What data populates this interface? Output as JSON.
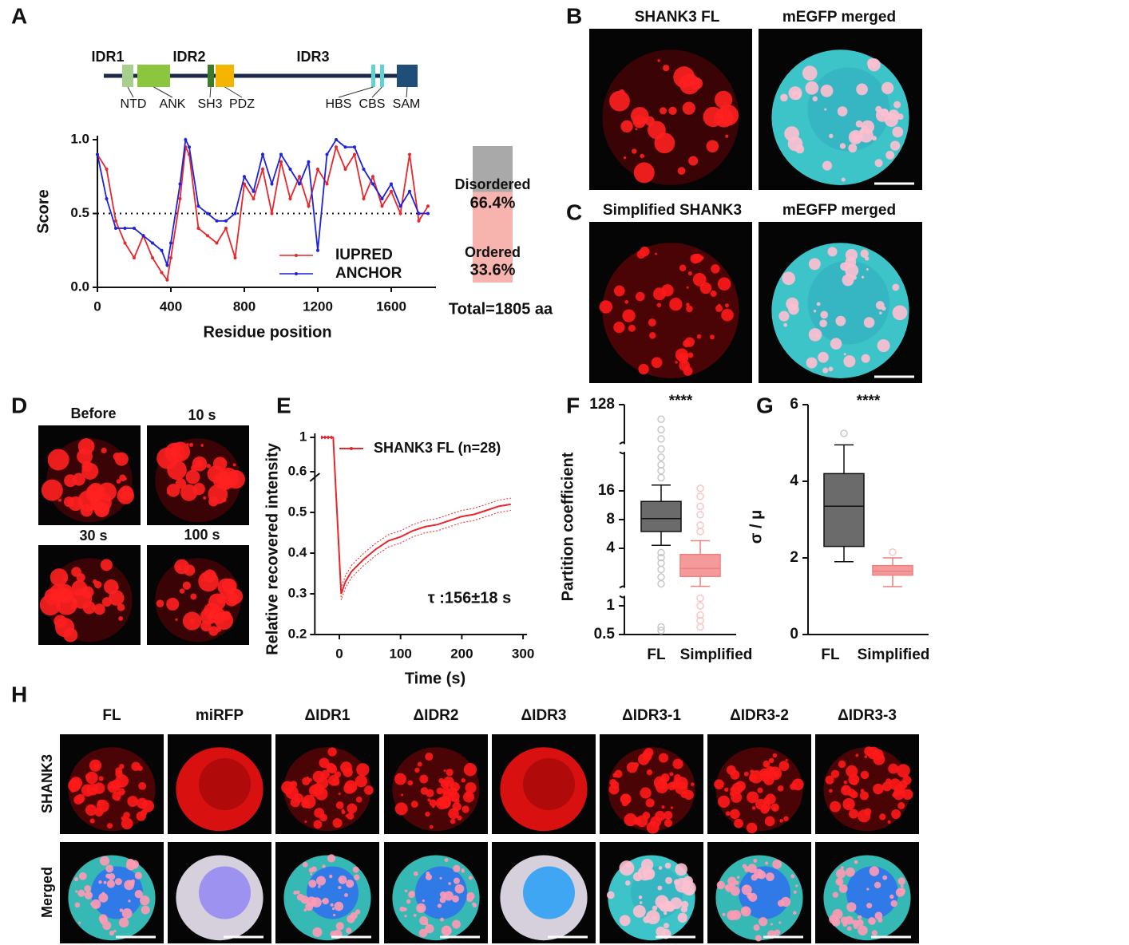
{
  "panel_labels": [
    "A",
    "B",
    "C",
    "D",
    "E",
    "F",
    "G",
    "H"
  ],
  "panel_a_diagram": {
    "idr_labels": [
      "IDR1",
      "IDR2",
      "IDR3"
    ],
    "domain_labels": [
      "NTD",
      "ANK",
      "SH3",
      "PDZ",
      "HBS",
      "CBS",
      "SAM"
    ]
  },
  "panel_b": {
    "titles": [
      "SHANK3 FL",
      "mEGFP merged"
    ]
  },
  "panel_c": {
    "titles": [
      "Simplified SHANK3",
      "mEGFP merged"
    ]
  },
  "panel_d": {
    "titles": [
      "Before",
      "10 s",
      "30 s",
      "100 s"
    ]
  },
  "panel_h": {
    "columns": [
      "FL",
      "miRFP",
      "ΔIDR1",
      "ΔIDR2",
      "ΔIDR3",
      "ΔIDR3-1",
      "ΔIDR3-2",
      "ΔIDR3-3"
    ],
    "rows": [
      "SHANK3",
      "Merged"
    ]
  },
  "chart_data": [
    {
      "type": "line",
      "ylabel": "Score",
      "xlabel": "Residue position",
      "x": [
        0,
        50,
        100,
        150,
        200,
        250,
        300,
        350,
        380,
        400,
        450,
        480,
        500,
        550,
        600,
        650,
        700,
        750,
        800,
        850,
        900,
        950,
        1000,
        1050,
        1100,
        1150,
        1200,
        1250,
        1300,
        1350,
        1400,
        1450,
        1500,
        1550,
        1600,
        1650,
        1700,
        1750,
        1800
      ],
      "series": [
        {
          "name": "IUPRED",
          "color": "#e8262b",
          "values": [
            0.9,
            0.8,
            0.45,
            0.3,
            0.2,
            0.35,
            0.2,
            0.1,
            0.05,
            0.2,
            0.6,
            0.95,
            0.9,
            0.4,
            0.35,
            0.3,
            0.4,
            0.2,
            0.7,
            0.6,
            0.8,
            0.5,
            0.85,
            0.6,
            0.75,
            0.55,
            0.8,
            0.7,
            0.95,
            0.8,
            0.9,
            0.6,
            0.75,
            0.55,
            0.65,
            0.5,
            0.9,
            0.45,
            0.55
          ]
        },
        {
          "name": "ANCHOR",
          "color": "#1f22d6",
          "values": [
            0.9,
            0.6,
            0.4,
            0.4,
            0.4,
            0.35,
            0.3,
            0.25,
            0.15,
            0.3,
            0.7,
            1.0,
            0.95,
            0.55,
            0.5,
            0.45,
            0.45,
            0.5,
            0.75,
            0.65,
            0.9,
            0.7,
            0.9,
            0.8,
            0.7,
            0.85,
            0.25,
            0.9,
            1.0,
            0.95,
            0.95,
            0.8,
            0.7,
            0.6,
            0.7,
            0.55,
            0.65,
            0.5,
            0.5
          ]
        }
      ],
      "xlim": [
        0,
        1800
      ],
      "ylim": [
        0,
        1
      ],
      "xticks": [
        0,
        400,
        800,
        1200,
        1600
      ],
      "yticks": [
        {
          "value": 0,
          "label": "0.0"
        },
        0.5,
        {
          "value": 1,
          "label": "1.0"
        }
      ],
      "threshold": 0.5
    },
    {
      "type": "stacked_bar",
      "ylim": [
        0,
        100
      ],
      "caption": "Total=1805 aa",
      "series": [
        {
          "name": "Disordered",
          "color": "#f7b3ad",
          "values": [
            66.4
          ],
          "value_labels": [
            "66.4%"
          ]
        },
        {
          "name": "Ordered",
          "color": "#a9a9a9",
          "values": [
            33.6
          ],
          "value_labels": [
            "33.6%"
          ]
        }
      ]
    },
    {
      "type": "line",
      "ylabel": "Relative recovered intensity",
      "xlabel": "Time (s)",
      "x": [
        -30,
        -20,
        -10,
        3,
        10,
        20,
        40,
        60,
        80,
        100,
        120,
        140,
        160,
        180,
        200,
        220,
        240,
        260,
        280
      ],
      "series": [
        {
          "name": "SHANK3 FL (n=28)",
          "color": "#e8262b",
          "values": [
            1,
            1,
            1,
            0.3,
            0.33,
            0.355,
            0.385,
            0.41,
            0.43,
            0.44,
            0.455,
            0.465,
            0.47,
            0.48,
            0.49,
            0.495,
            0.505,
            0.515,
            0.52
          ]
        }
      ],
      "error": 0.015,
      "xlim": [
        -40,
        300
      ],
      "ylim": [
        0.2,
        1
      ],
      "xticks": [
        0,
        100,
        200,
        300
      ],
      "yticks": [
        0.2,
        0.3,
        0.4,
        0.5,
        0.6,
        1
      ],
      "axis_break": 0.6,
      "annotation": "τ :156±18 s"
    },
    {
      "type": "box",
      "ylabel": "Partition coefficient",
      "categories": [
        "FL",
        "Simplified"
      ],
      "colors": [
        "#6b6b6b",
        "#f59a9a"
      ],
      "log_base": 2,
      "ylim": [
        0.5,
        128
      ],
      "yticks": [
        0.5,
        1,
        4,
        8,
        16,
        128
      ],
      "axis_breaks": [
        1.4,
        45
      ],
      "significance": "****",
      "boxes": [
        {
          "whisker_low": 4.3,
          "q1": 6,
          "median": 8.2,
          "q3": 12.4,
          "whisker_high": 18.4,
          "outliers": [
            22,
            26,
            30,
            36,
            44,
            56,
            70,
            90,
            3.6,
            3.2,
            2.8,
            2.4,
            2,
            1.7,
            0.6,
            0.55
          ]
        },
        {
          "whisker_low": 1.6,
          "q1": 2.03,
          "median": 2.46,
          "q3": 3.45,
          "whisker_high": 4.8,
          "outliers": [
            6,
            7,
            9,
            11,
            14,
            17,
            1.2,
            1.0,
            0.8,
            0.7,
            0.6
          ]
        }
      ]
    },
    {
      "type": "box",
      "ylabel": "σ / μ",
      "categories": [
        "FL",
        "Simplified"
      ],
      "colors": [
        "#6b6b6b",
        "#f59a9a"
      ],
      "ylim": [
        0,
        6
      ],
      "yticks": [
        0,
        2,
        4,
        6
      ],
      "significance": "****",
      "boxes": [
        {
          "whisker_low": 1.9,
          "q1": 2.3,
          "median": 3.35,
          "q3": 4.2,
          "whisker_high": 4.95,
          "outliers": [
            5.25
          ]
        },
        {
          "whisker_low": 1.25,
          "q1": 1.55,
          "median": 1.65,
          "q3": 1.8,
          "whisker_high": 2.0,
          "outliers": [
            2.15
          ]
        }
      ]
    }
  ]
}
